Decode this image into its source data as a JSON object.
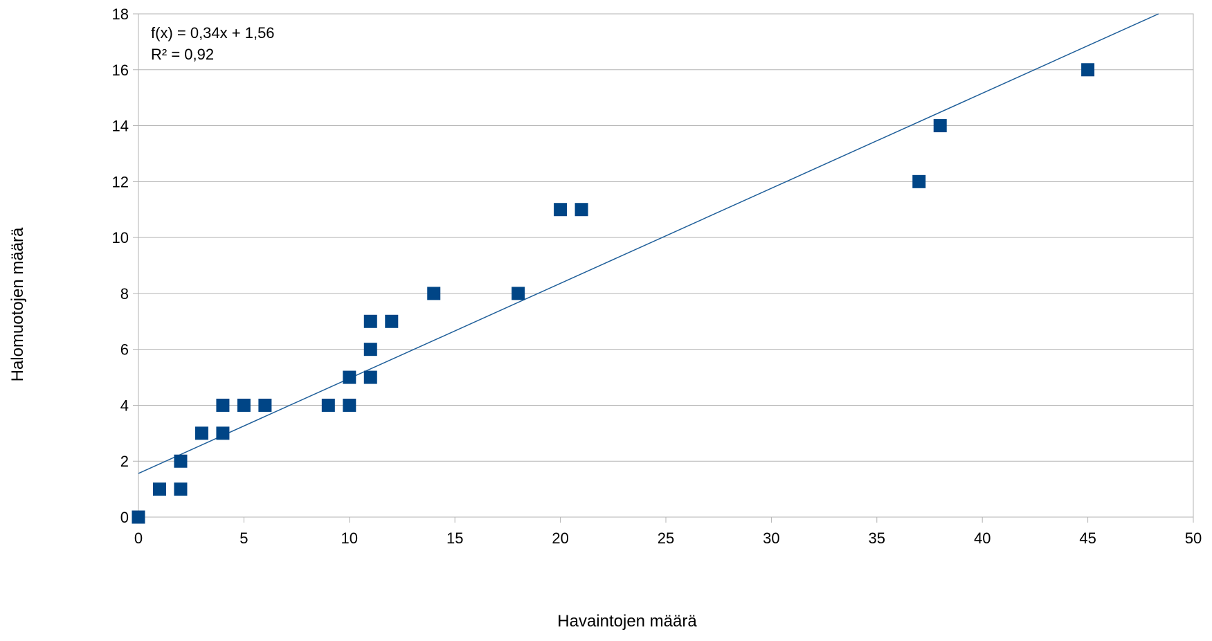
{
  "chart_data": {
    "type": "scatter",
    "xlabel": "Havaintojen määrä",
    "ylabel": "Halomuotojen määrä",
    "xlim": [
      0,
      50
    ],
    "ylim": [
      0,
      18
    ],
    "x_ticks": [
      "0",
      "5",
      "10",
      "15",
      "20",
      "25",
      "30",
      "35",
      "40",
      "45",
      "50"
    ],
    "y_ticks": [
      "0",
      "2",
      "4",
      "6",
      "8",
      "10",
      "12",
      "14",
      "16",
      "18"
    ],
    "grid": "horizontal",
    "marker_color": "#004586",
    "trendline_color": "#1f5f9a",
    "trendline": {
      "slope": 0.34,
      "intercept": 1.56,
      "equation_label": "f(x) = 0,34x + 1,56",
      "r2_label": "R² = 0,92"
    },
    "points": [
      {
        "x": 0,
        "y": 0
      },
      {
        "x": 1,
        "y": 1
      },
      {
        "x": 2,
        "y": 1
      },
      {
        "x": 2,
        "y": 2
      },
      {
        "x": 3,
        "y": 3
      },
      {
        "x": 4,
        "y": 3
      },
      {
        "x": 4,
        "y": 4
      },
      {
        "x": 5,
        "y": 4
      },
      {
        "x": 6,
        "y": 4
      },
      {
        "x": 9,
        "y": 4
      },
      {
        "x": 10,
        "y": 4
      },
      {
        "x": 10,
        "y": 5
      },
      {
        "x": 11,
        "y": 5
      },
      {
        "x": 11,
        "y": 6
      },
      {
        "x": 11,
        "y": 7
      },
      {
        "x": 12,
        "y": 7
      },
      {
        "x": 14,
        "y": 8
      },
      {
        "x": 18,
        "y": 8
      },
      {
        "x": 20,
        "y": 11
      },
      {
        "x": 21,
        "y": 11
      },
      {
        "x": 37,
        "y": 12
      },
      {
        "x": 38,
        "y": 14
      },
      {
        "x": 45,
        "y": 16
      }
    ]
  }
}
